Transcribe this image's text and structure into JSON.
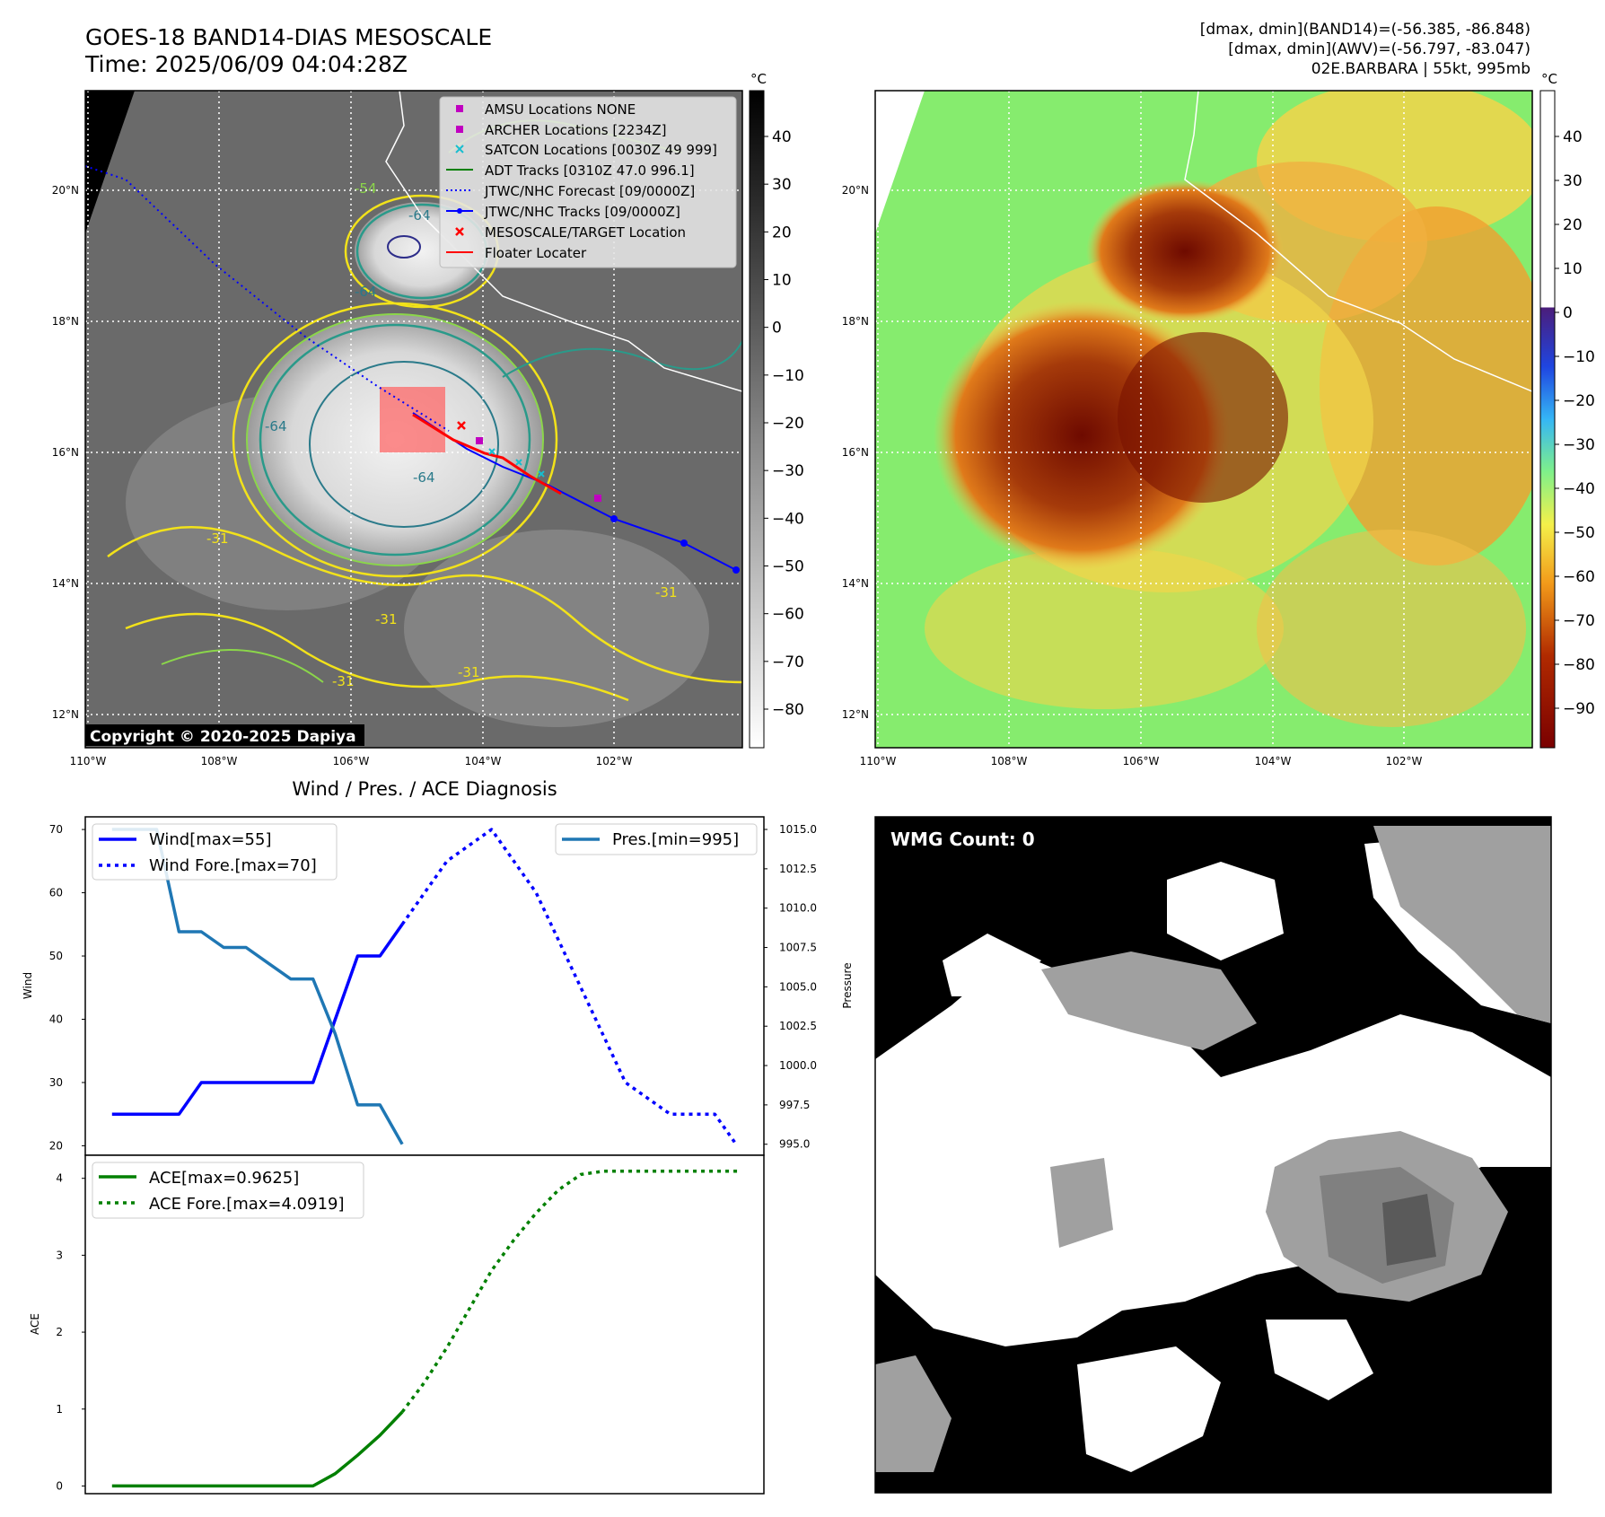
{
  "header": {
    "title_line1": "GOES-18 BAND14-DIAS MESOSCALE",
    "title_line2": "Time: 2025/06/09 04:04:28Z",
    "stats_line1": "[dmax, dmin](BAND14)=(-56.385, -86.848)",
    "stats_line2": "[dmax, dmin](AWV)=(-56.797, -83.047)",
    "stats_line3": "02E.BARBARA | 55kt, 995mb"
  },
  "ir_map": {
    "copyright": "Copyright © 2020-2025 Dapiya",
    "legend": [
      {
        "label": "AMSU Locations NONE",
        "marker": "square",
        "color": "#c000c0"
      },
      {
        "label": "ARCHER Locations [2234Z]",
        "marker": "square",
        "color": "#c000c0"
      },
      {
        "label": "SATCON Locations [0030Z 49 999]",
        "marker": "x",
        "color": "#17becf"
      },
      {
        "label": "ADT Tracks [0310Z 47.0 996.1]",
        "marker": "line",
        "color": "#008000"
      },
      {
        "label": "JTWC/NHC Forecast [09/0000Z]",
        "marker": "dotted",
        "color": "#0000ff"
      },
      {
        "label": "JTWC/NHC Tracks [09/0000Z]",
        "marker": "line-dot",
        "color": "#0000ff"
      },
      {
        "label": "MESOSCALE/TARGET Location",
        "marker": "x",
        "color": "#ff0000"
      },
      {
        "label": "Floater Locater",
        "marker": "line",
        "color": "#ff0000"
      }
    ],
    "contour_labels": [
      "-64",
      "-64",
      "-64",
      "-64",
      "-31",
      "-31",
      "-31",
      "-31",
      "-31",
      "-54"
    ]
  },
  "map_axes": {
    "lon_ticks": [
      "110°W",
      "108°W",
      "106°W",
      "104°W",
      "102°W"
    ],
    "lat_ticks": [
      "20°N",
      "18°N",
      "16°N",
      "14°N",
      "12°N"
    ]
  },
  "colorbars": {
    "unit": "°C",
    "gray_ticks": [
      "40",
      "30",
      "20",
      "10",
      "0",
      "−10",
      "−20",
      "−30",
      "−40",
      "−50",
      "−60",
      "−70",
      "−80"
    ],
    "color_ticks": [
      "40",
      "30",
      "20",
      "10",
      "0",
      "−10",
      "−20",
      "−30",
      "−40",
      "−50",
      "−60",
      "−70",
      "−80",
      "−90"
    ]
  },
  "wmg": {
    "label": "WMG Count: 0"
  },
  "chart_data": [
    {
      "type": "line",
      "title": "Wind / Pres. / ACE Diagnosis",
      "ylabel": "Wind",
      "y2label": "Pressure",
      "ylim": [
        18.5,
        72
      ],
      "y2lim": [
        994.3,
        1015.8
      ],
      "yticks": [
        20,
        30,
        40,
        50,
        60,
        70
      ],
      "y2ticks": [
        "995.0",
        "997.5",
        "1000.0",
        "1002.5",
        "1005.0",
        "1007.5",
        "1010.0",
        "1012.5",
        "1015.0"
      ],
      "xlim": [
        -0.6,
        14.6
      ],
      "series": [
        {
          "name": "Wind[max=55]",
          "color": "#0000ff",
          "style": "solid",
          "x": [
            0,
            0.5,
            1,
            1.5,
            2,
            2.5,
            3,
            3.5,
            4,
            4.5,
            5,
            5.5,
            6,
            6.5
          ],
          "values": [
            25,
            25,
            25,
            25,
            30,
            30,
            30,
            30,
            30,
            30,
            40,
            50,
            50,
            55
          ]
        },
        {
          "name": "Wind Fore.[max=70]",
          "color": "#0000ff",
          "style": "dotted",
          "x": [
            6.5,
            7.5,
            8.5,
            9.5,
            10.5,
            11.5,
            12.5,
            13.5,
            14
          ],
          "values": [
            55,
            65,
            70,
            60,
            45,
            30,
            25,
            25,
            20
          ]
        },
        {
          "name": "Pres.[min=995]",
          "color": "#1f77b4",
          "style": "solid",
          "axis": "y2",
          "x": [
            0,
            0.5,
            1,
            1.5,
            2,
            2.5,
            3,
            3.5,
            4,
            4.5,
            5,
            5.5,
            6,
            6.5
          ],
          "values": [
            1015,
            1015,
            1015,
            1008.5,
            1008.5,
            1007.5,
            1007.5,
            1006.5,
            1005.5,
            1005.5,
            1002,
            997.5,
            997.5,
            995
          ]
        }
      ]
    },
    {
      "type": "line",
      "ylabel": "ACE",
      "ylim": [
        -0.1,
        4.3
      ],
      "yticks": [
        0,
        1,
        2,
        3,
        4
      ],
      "xlim": [
        -0.6,
        14.6
      ],
      "series": [
        {
          "name": "ACE[max=0.9625]",
          "color": "#008000",
          "style": "solid",
          "x": [
            0,
            0.5,
            1,
            1.5,
            2,
            2.5,
            3,
            3.5,
            4,
            4.5,
            5,
            5.5,
            6,
            6.5
          ],
          "values": [
            0,
            0,
            0,
            0,
            0,
            0,
            0,
            0,
            0,
            0,
            0.16,
            0.4,
            0.66,
            0.9625
          ]
        },
        {
          "name": "ACE Fore.[max=4.0919]",
          "color": "#008000",
          "style": "dotted",
          "x": [
            6.5,
            7,
            7.5,
            8,
            8.5,
            9,
            9.5,
            10,
            10.5,
            11,
            11.5,
            12,
            12.5,
            13,
            13.5,
            14
          ],
          "values": [
            0.9625,
            1.35,
            1.8,
            2.3,
            2.8,
            3.2,
            3.55,
            3.85,
            4.05,
            4.0919,
            4.0919,
            4.0919,
            4.0919,
            4.0919,
            4.0919,
            4.0919
          ]
        }
      ]
    }
  ]
}
